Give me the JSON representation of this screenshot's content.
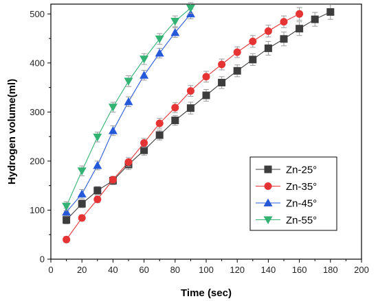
{
  "chart_data": {
    "type": "line",
    "title": "",
    "xlabel": "Time (sec)",
    "ylabel": "Hydrogen volume(ml)",
    "xlim": [
      0,
      200
    ],
    "ylim": [
      0,
      520
    ],
    "xticks": [
      0,
      20,
      40,
      60,
      80,
      100,
      120,
      140,
      160,
      180,
      200
    ],
    "yticks": [
      0,
      100,
      200,
      300,
      400,
      500
    ],
    "grid": false,
    "legend_position": "lower-right",
    "series": [
      {
        "name": "Zn-25°",
        "color": "#3d3d3d",
        "marker": "square",
        "x": [
          10,
          20,
          30,
          40,
          50,
          60,
          70,
          80,
          90,
          100,
          110,
          120,
          130,
          140,
          150,
          160,
          170,
          180
        ],
        "y": [
          80,
          113,
          140,
          160,
          193,
          222,
          253,
          283,
          308,
          334,
          360,
          384,
          407,
          430,
          449,
          470,
          489,
          504
        ],
        "error": [
          8,
          8,
          8,
          8,
          10,
          10,
          10,
          10,
          12,
          12,
          12,
          12,
          12,
          14,
          14,
          14,
          14,
          15
        ]
      },
      {
        "name": "Zn-35°",
        "color": "#e63333",
        "marker": "circle",
        "x": [
          10,
          20,
          30,
          40,
          50,
          60,
          70,
          80,
          90,
          100,
          110,
          120,
          130,
          140,
          150,
          160
        ],
        "y": [
          40,
          84,
          122,
          162,
          198,
          237,
          277,
          309,
          343,
          372,
          397,
          422,
          444,
          465,
          484,
          500
        ],
        "error": [
          6,
          6,
          7,
          7,
          9,
          9,
          10,
          10,
          11,
          11,
          11,
          11,
          12,
          12,
          12,
          13
        ]
      },
      {
        "name": "Zn-45°",
        "color": "#2659d9",
        "marker": "triangle-up",
        "x": [
          10,
          20,
          30,
          40,
          50,
          60,
          70,
          80,
          90
        ],
        "y": [
          96,
          133,
          191,
          262,
          321,
          375,
          420,
          462,
          500
        ],
        "error": [
          8,
          9,
          9,
          10,
          10,
          10,
          10,
          10,
          10
        ]
      },
      {
        "name": "Zn-55°",
        "color": "#33b373",
        "marker": "triangle-down",
        "x": [
          10,
          20,
          30,
          40,
          50,
          60,
          70,
          80,
          90
        ],
        "y": [
          108,
          180,
          249,
          310,
          363,
          408,
          449,
          485,
          512
        ],
        "error": [
          9,
          10,
          10,
          10,
          11,
          11,
          11,
          11,
          11
        ]
      }
    ]
  }
}
